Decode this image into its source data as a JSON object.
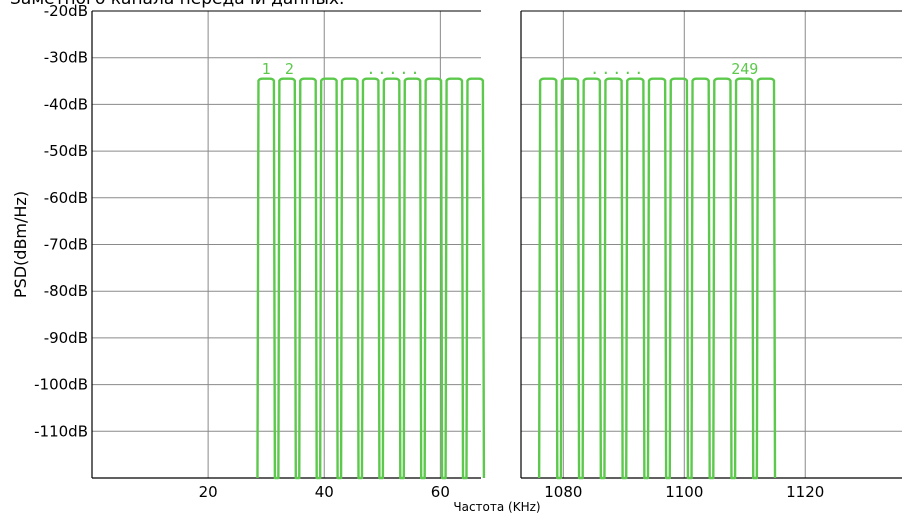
{
  "chart_data": {
    "type": "line",
    "title": "Заметного канала передачи данных.",
    "xlabel": "Частота (KHz)",
    "ylabel": "PSD(dBm/Hz)",
    "ylim": [
      -120,
      -20
    ],
    "y_ticks": [
      -20,
      -30,
      -40,
      -50,
      -60,
      -70,
      -80,
      -90,
      -100,
      -110
    ],
    "y_tick_labels": [
      "-20dB",
      "-30dB",
      "-40dB",
      "-50dB",
      "-60dB",
      "-70dB",
      "-80dB",
      "-90dB",
      "-100dB",
      "-110dB"
    ],
    "grid": true,
    "panels": [
      {
        "name": "left",
        "xlim": [
          0,
          67
        ],
        "x_ticks": [
          20,
          40,
          60
        ],
        "x_tick_labels": [
          "20",
          "40",
          "60"
        ],
        "channel_labels": [
          {
            "text": "1",
            "x": 30
          },
          {
            "text": "2",
            "x": 34
          },
          {
            "text": ".....",
            "x": 52
          }
        ]
      },
      {
        "name": "right",
        "xlim": [
          1073,
          1136
        ],
        "x_ticks": [
          1080,
          1100,
          1120
        ],
        "x_tick_labels": [
          "1080",
          "1100",
          "1120"
        ],
        "channel_labels": [
          {
            "text": ".....",
            "x": 1089
          },
          {
            "text": "249",
            "x": 1110
          }
        ]
      }
    ],
    "series": [
      {
        "color": "#5cc94c",
        "peak_db": -34.5,
        "floor_db": -120,
        "channels_left_start_khz": [
          28.5,
          32.1,
          35.7,
          39.3,
          42.9,
          46.5,
          50.1,
          53.7,
          57.3,
          60.9,
          64.5
        ],
        "channels_right_start_khz": [
          1076,
          1079.6,
          1083.2,
          1086.8,
          1090.4,
          1094,
          1097.6,
          1101.2,
          1104.8,
          1108.4,
          1112
        ],
        "channel_width_khz": 3.0
      }
    ]
  }
}
